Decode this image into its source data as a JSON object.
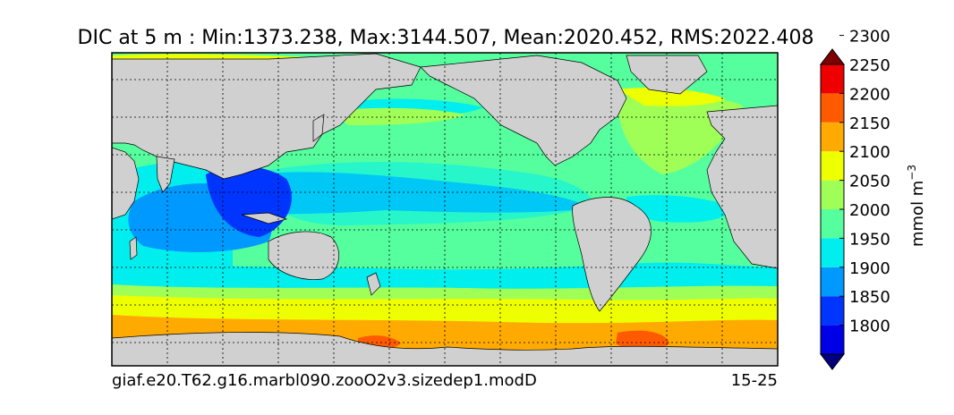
{
  "chart_data": {
    "type": "heatmap",
    "title": "DIC at 5 m : Min:1373.238, Max:3144.507, Mean:2020.452, RMS:2022.408",
    "subtitle_left": "giaf.e20.T62.g16.marbl090.zooO2v3.sizedep1.modD",
    "subtitle_right": "15-25",
    "colorbar": {
      "label": "mmol m",
      "label_superscript": "−3",
      "ticks": [
        "1800",
        "1850",
        "1900",
        "1950",
        "2000",
        "2050",
        "2100",
        "2150",
        "2200",
        "2250",
        "2300"
      ],
      "levels": [
        1775,
        1800,
        1850,
        1900,
        1950,
        2000,
        2050,
        2100,
        2150,
        2200,
        2250,
        2300,
        2325
      ],
      "colors": [
        "#00007f",
        "#0000e6",
        "#0035ff",
        "#0099ff",
        "#00eeee",
        "#55ff9e",
        "#a0ff57",
        "#eeff00",
        "#ffaa00",
        "#ff5a00",
        "#ee0000",
        "#7f0000"
      ],
      "extend": "both"
    },
    "land_color": "#d0d0d0",
    "grid": "dashed"
  }
}
